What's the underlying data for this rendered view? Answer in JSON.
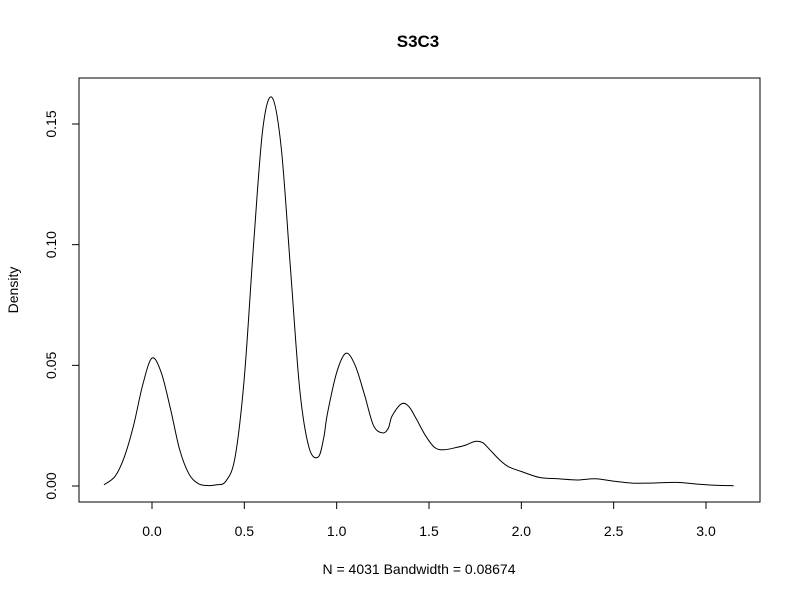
{
  "chart_data": {
    "type": "line",
    "title": "S3C3",
    "xlabel": "N = 4031   Bandwidth = 0.08674",
    "ylabel": "Density",
    "xlim": [
      -0.27,
      3.15
    ],
    "ylim": [
      0,
      0.16
    ],
    "x_ticks": [
      "0.0",
      "0.5",
      "1.0",
      "1.5",
      "2.0",
      "2.5",
      "3.0"
    ],
    "y_ticks": [
      "0.00",
      "0.05",
      "0.10",
      "0.15"
    ],
    "grid": false,
    "legend": "none",
    "series": [
      {
        "color": "#000000",
        "x": [
          -0.26,
          -0.2,
          -0.15,
          -0.1,
          -0.05,
          0.0,
          0.05,
          0.1,
          0.15,
          0.2,
          0.25,
          0.3,
          0.35,
          0.4,
          0.45,
          0.5,
          0.55,
          0.6,
          0.65,
          0.7,
          0.75,
          0.8,
          0.85,
          0.9,
          0.93,
          0.95,
          1.0,
          1.05,
          1.1,
          1.15,
          1.2,
          1.25,
          1.28,
          1.3,
          1.35,
          1.39,
          1.43,
          1.48,
          1.53,
          1.58,
          1.65,
          1.7,
          1.75,
          1.79,
          1.83,
          1.88,
          1.93,
          2.0,
          2.1,
          2.2,
          2.3,
          2.4,
          2.5,
          2.6,
          2.7,
          2.84,
          2.95,
          3.05,
          3.15
        ],
        "y": [
          0.0005,
          0.004,
          0.012,
          0.025,
          0.042,
          0.053,
          0.047,
          0.032,
          0.015,
          0.005,
          0.001,
          0.0002,
          0.0005,
          0.002,
          0.012,
          0.045,
          0.1,
          0.148,
          0.161,
          0.14,
          0.09,
          0.04,
          0.016,
          0.012,
          0.02,
          0.03,
          0.047,
          0.055,
          0.05,
          0.038,
          0.025,
          0.022,
          0.024,
          0.029,
          0.034,
          0.033,
          0.028,
          0.021,
          0.016,
          0.015,
          0.016,
          0.017,
          0.0185,
          0.018,
          0.015,
          0.011,
          0.008,
          0.006,
          0.0035,
          0.003,
          0.0025,
          0.003,
          0.002,
          0.0012,
          0.0012,
          0.0015,
          0.0008,
          0.0003,
          0.0001
        ]
      }
    ]
  }
}
